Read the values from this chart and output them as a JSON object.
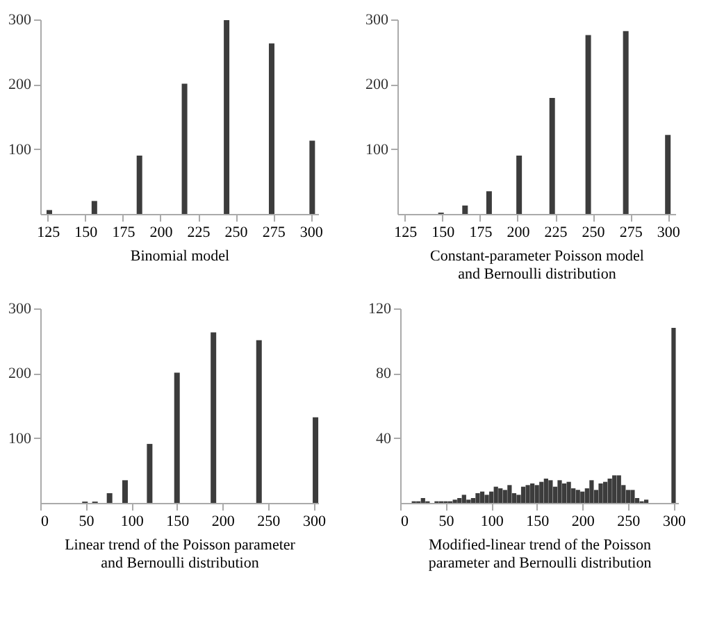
{
  "chart_data": [
    {
      "type": "bar",
      "xlabel": "Binomial model",
      "x": [
        126,
        156,
        186,
        216,
        244,
        274,
        301
      ],
      "values": [
        6,
        20,
        90,
        201,
        299,
        263,
        113
      ],
      "color": "#3c3c3c",
      "xlim": [
        120,
        305
      ],
      "xticks": [
        125,
        150,
        175,
        200,
        225,
        250,
        275,
        300
      ],
      "ylim": [
        0,
        300
      ],
      "yticks": [
        100,
        200,
        300
      ],
      "grid": false
    },
    {
      "type": "bar",
      "xlabel": "Constant-parameter Poisson model\nand Bernoulli distribution",
      "x": [
        149,
        165,
        181,
        201,
        223,
        247,
        272,
        300
      ],
      "values": [
        2,
        13,
        35,
        90,
        179,
        276,
        282,
        122
      ],
      "color": "#3c3c3c",
      "xlim": [
        120,
        305
      ],
      "xticks": [
        125,
        150,
        175,
        200,
        225,
        250,
        275,
        300
      ],
      "ylim": [
        0,
        300
      ],
      "yticks": [
        100,
        200,
        300
      ],
      "grid": false
    },
    {
      "type": "bar",
      "xlabel": "Linear trend of the Poisson parameter\nand Bernoulli distribution",
      "x": [
        49,
        60,
        76,
        93,
        120,
        150,
        190,
        240,
        302
      ],
      "values": [
        2,
        2,
        15,
        35,
        91,
        201,
        263,
        251,
        132
      ],
      "color": "#3c3c3c",
      "xlim": [
        0,
        305
      ],
      "xticks": [
        0,
        50,
        100,
        150,
        200,
        250,
        300
      ],
      "ylim": [
        0,
        300
      ],
      "yticks": [
        100,
        200,
        300
      ],
      "grid": false
    },
    {
      "type": "bar",
      "xlabel": "Modified-linear trend of the Poisson\nparameter and Bernoulli distribution",
      "x": [
        15,
        20,
        25,
        30,
        40,
        45,
        50,
        55,
        60,
        65,
        70,
        75,
        80,
        85,
        90,
        95,
        100,
        105,
        110,
        115,
        120,
        125,
        130,
        135,
        140,
        145,
        150,
        155,
        160,
        165,
        170,
        175,
        180,
        185,
        190,
        195,
        200,
        205,
        210,
        215,
        220,
        225,
        230,
        235,
        240,
        245,
        250,
        255,
        260,
        265,
        270,
        300
      ],
      "values": [
        1,
        1,
        3,
        1,
        1,
        1,
        1,
        1,
        2,
        3,
        5,
        2,
        3,
        6,
        7,
        5,
        7,
        10,
        9,
        8,
        11,
        6,
        5,
        10,
        11,
        12,
        11,
        13,
        15,
        14,
        10,
        14,
        12,
        13,
        9,
        8,
        7,
        9,
        14,
        8,
        12,
        13,
        15,
        17,
        17,
        11,
        8,
        8,
        3,
        1,
        2,
        108
      ],
      "color": "#3c3c3c",
      "xlim": [
        0,
        305
      ],
      "xticks": [
        0,
        50,
        100,
        150,
        200,
        250,
        300
      ],
      "ylim": [
        0,
        120
      ],
      "yticks": [
        40,
        80,
        120
      ],
      "grid": false
    }
  ]
}
